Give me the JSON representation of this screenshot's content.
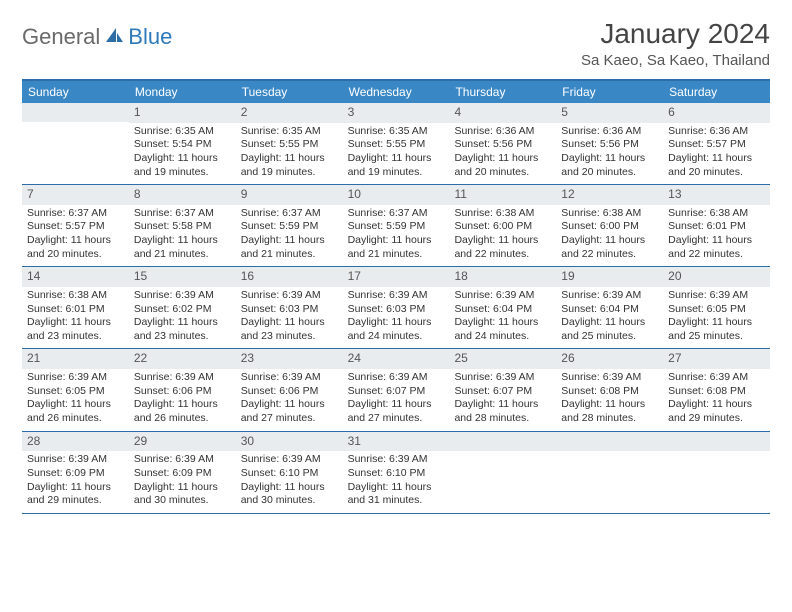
{
  "brand": {
    "part1": "General",
    "part2": "Blue"
  },
  "title": "January 2024",
  "location": "Sa Kaeo, Sa Kaeo, Thailand",
  "colors": {
    "header_bar": "#3a87c6",
    "border": "#2d6ea8",
    "daynum_bg": "#e9ecef",
    "text": "#333333",
    "brand_gray": "#6a6a6a",
    "brand_blue": "#3079b8"
  },
  "day_headers": [
    "Sunday",
    "Monday",
    "Tuesday",
    "Wednesday",
    "Thursday",
    "Friday",
    "Saturday"
  ],
  "weeks": [
    [
      {
        "n": "",
        "sr": "",
        "ss": "",
        "dl": ""
      },
      {
        "n": "1",
        "sr": "Sunrise: 6:35 AM",
        "ss": "Sunset: 5:54 PM",
        "dl": "Daylight: 11 hours and 19 minutes."
      },
      {
        "n": "2",
        "sr": "Sunrise: 6:35 AM",
        "ss": "Sunset: 5:55 PM",
        "dl": "Daylight: 11 hours and 19 minutes."
      },
      {
        "n": "3",
        "sr": "Sunrise: 6:35 AM",
        "ss": "Sunset: 5:55 PM",
        "dl": "Daylight: 11 hours and 19 minutes."
      },
      {
        "n": "4",
        "sr": "Sunrise: 6:36 AM",
        "ss": "Sunset: 5:56 PM",
        "dl": "Daylight: 11 hours and 20 minutes."
      },
      {
        "n": "5",
        "sr": "Sunrise: 6:36 AM",
        "ss": "Sunset: 5:56 PM",
        "dl": "Daylight: 11 hours and 20 minutes."
      },
      {
        "n": "6",
        "sr": "Sunrise: 6:36 AM",
        "ss": "Sunset: 5:57 PM",
        "dl": "Daylight: 11 hours and 20 minutes."
      }
    ],
    [
      {
        "n": "7",
        "sr": "Sunrise: 6:37 AM",
        "ss": "Sunset: 5:57 PM",
        "dl": "Daylight: 11 hours and 20 minutes."
      },
      {
        "n": "8",
        "sr": "Sunrise: 6:37 AM",
        "ss": "Sunset: 5:58 PM",
        "dl": "Daylight: 11 hours and 21 minutes."
      },
      {
        "n": "9",
        "sr": "Sunrise: 6:37 AM",
        "ss": "Sunset: 5:59 PM",
        "dl": "Daylight: 11 hours and 21 minutes."
      },
      {
        "n": "10",
        "sr": "Sunrise: 6:37 AM",
        "ss": "Sunset: 5:59 PM",
        "dl": "Daylight: 11 hours and 21 minutes."
      },
      {
        "n": "11",
        "sr": "Sunrise: 6:38 AM",
        "ss": "Sunset: 6:00 PM",
        "dl": "Daylight: 11 hours and 22 minutes."
      },
      {
        "n": "12",
        "sr": "Sunrise: 6:38 AM",
        "ss": "Sunset: 6:00 PM",
        "dl": "Daylight: 11 hours and 22 minutes."
      },
      {
        "n": "13",
        "sr": "Sunrise: 6:38 AM",
        "ss": "Sunset: 6:01 PM",
        "dl": "Daylight: 11 hours and 22 minutes."
      }
    ],
    [
      {
        "n": "14",
        "sr": "Sunrise: 6:38 AM",
        "ss": "Sunset: 6:01 PM",
        "dl": "Daylight: 11 hours and 23 minutes."
      },
      {
        "n": "15",
        "sr": "Sunrise: 6:39 AM",
        "ss": "Sunset: 6:02 PM",
        "dl": "Daylight: 11 hours and 23 minutes."
      },
      {
        "n": "16",
        "sr": "Sunrise: 6:39 AM",
        "ss": "Sunset: 6:03 PM",
        "dl": "Daylight: 11 hours and 23 minutes."
      },
      {
        "n": "17",
        "sr": "Sunrise: 6:39 AM",
        "ss": "Sunset: 6:03 PM",
        "dl": "Daylight: 11 hours and 24 minutes."
      },
      {
        "n": "18",
        "sr": "Sunrise: 6:39 AM",
        "ss": "Sunset: 6:04 PM",
        "dl": "Daylight: 11 hours and 24 minutes."
      },
      {
        "n": "19",
        "sr": "Sunrise: 6:39 AM",
        "ss": "Sunset: 6:04 PM",
        "dl": "Daylight: 11 hours and 25 minutes."
      },
      {
        "n": "20",
        "sr": "Sunrise: 6:39 AM",
        "ss": "Sunset: 6:05 PM",
        "dl": "Daylight: 11 hours and 25 minutes."
      }
    ],
    [
      {
        "n": "21",
        "sr": "Sunrise: 6:39 AM",
        "ss": "Sunset: 6:05 PM",
        "dl": "Daylight: 11 hours and 26 minutes."
      },
      {
        "n": "22",
        "sr": "Sunrise: 6:39 AM",
        "ss": "Sunset: 6:06 PM",
        "dl": "Daylight: 11 hours and 26 minutes."
      },
      {
        "n": "23",
        "sr": "Sunrise: 6:39 AM",
        "ss": "Sunset: 6:06 PM",
        "dl": "Daylight: 11 hours and 27 minutes."
      },
      {
        "n": "24",
        "sr": "Sunrise: 6:39 AM",
        "ss": "Sunset: 6:07 PM",
        "dl": "Daylight: 11 hours and 27 minutes."
      },
      {
        "n": "25",
        "sr": "Sunrise: 6:39 AM",
        "ss": "Sunset: 6:07 PM",
        "dl": "Daylight: 11 hours and 28 minutes."
      },
      {
        "n": "26",
        "sr": "Sunrise: 6:39 AM",
        "ss": "Sunset: 6:08 PM",
        "dl": "Daylight: 11 hours and 28 minutes."
      },
      {
        "n": "27",
        "sr": "Sunrise: 6:39 AM",
        "ss": "Sunset: 6:08 PM",
        "dl": "Daylight: 11 hours and 29 minutes."
      }
    ],
    [
      {
        "n": "28",
        "sr": "Sunrise: 6:39 AM",
        "ss": "Sunset: 6:09 PM",
        "dl": "Daylight: 11 hours and 29 minutes."
      },
      {
        "n": "29",
        "sr": "Sunrise: 6:39 AM",
        "ss": "Sunset: 6:09 PM",
        "dl": "Daylight: 11 hours and 30 minutes."
      },
      {
        "n": "30",
        "sr": "Sunrise: 6:39 AM",
        "ss": "Sunset: 6:10 PM",
        "dl": "Daylight: 11 hours and 30 minutes."
      },
      {
        "n": "31",
        "sr": "Sunrise: 6:39 AM",
        "ss": "Sunset: 6:10 PM",
        "dl": "Daylight: 11 hours and 31 minutes."
      },
      {
        "n": "",
        "sr": "",
        "ss": "",
        "dl": ""
      },
      {
        "n": "",
        "sr": "",
        "ss": "",
        "dl": ""
      },
      {
        "n": "",
        "sr": "",
        "ss": "",
        "dl": ""
      }
    ]
  ]
}
